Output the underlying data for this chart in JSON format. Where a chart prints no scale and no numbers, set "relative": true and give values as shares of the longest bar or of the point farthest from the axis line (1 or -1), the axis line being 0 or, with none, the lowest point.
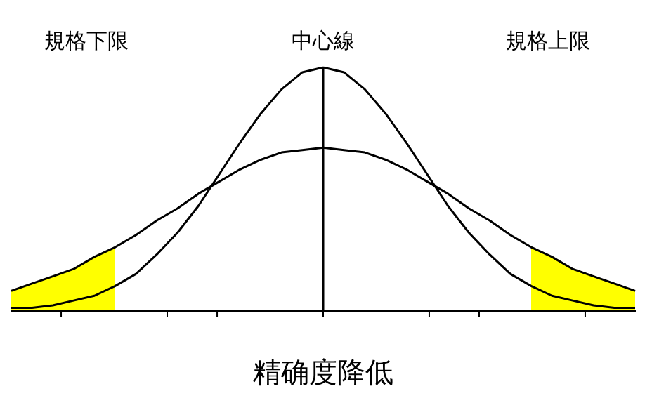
{
  "chart_data": {
    "type": "line",
    "title": "精确度降低",
    "relative": true,
    "legend": false,
    "marker": "none",
    "grid": false,
    "categories": [
      null,
      null,
      null,
      null,
      null,
      null,
      null,
      null,
      null,
      null,
      null,
      null,
      null,
      null,
      null,
      null,
      null,
      null,
      null,
      null,
      null,
      null,
      null,
      null,
      null,
      null,
      null,
      null,
      null,
      null,
      null
    ],
    "series": [
      {
        "color": "#000000",
        "values": [
          0.01,
          0.01,
          0.02,
          0.04,
          0.06,
          0.1,
          0.15,
          0.23,
          0.32,
          0.43,
          0.56,
          0.69,
          0.81,
          0.91,
          0.98,
          1,
          0.98,
          0.91,
          0.81,
          0.69,
          0.56,
          0.43,
          0.32,
          0.23,
          0.15,
          0.1,
          0.06,
          0.04,
          0.02,
          0.01,
          0.01
        ]
      },
      {
        "color": "#000000",
        "values": [
          0.08,
          0.11,
          0.14,
          0.17,
          0.22,
          0.26,
          0.31,
          0.37,
          0.42,
          0.48,
          0.53,
          0.58,
          0.62,
          0.65,
          0.66,
          0.67,
          0.66,
          0.65,
          0.62,
          0.58,
          0.53,
          0.48,
          0.42,
          0.37,
          0.31,
          0.26,
          0.22,
          0.17,
          0.14,
          0.11,
          0.08
        ]
      }
    ],
    "annotations": [
      "規格下限",
      "中心線",
      "規格上限"
    ]
  }
}
